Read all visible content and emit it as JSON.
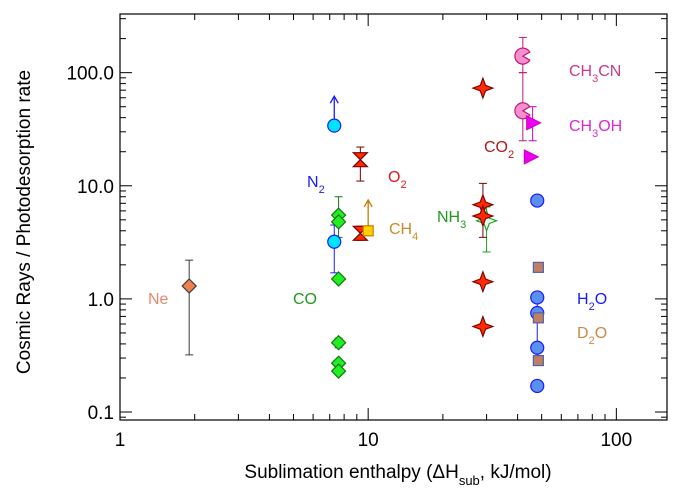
{
  "chart_data": {
    "type": "scatter",
    "xscale": "log",
    "yscale": "log",
    "xlim": [
      1,
      160
    ],
    "ylim": [
      0.085,
      330
    ],
    "xlabel": "Sublimation enthalpy (ΔH_sub, kJ/mol)",
    "ylabel": "Cosmic Rays / Photodesorption rate",
    "xticks": [
      {
        "value": 1,
        "label": "1"
      },
      {
        "value": 10,
        "label": "10"
      },
      {
        "value": 100,
        "label": "100"
      }
    ],
    "yticks": [
      {
        "value": 0.1,
        "label": "0.1"
      },
      {
        "value": 1,
        "label": "1.0"
      },
      {
        "value": 10,
        "label": "10.0"
      },
      {
        "value": 100,
        "label": "100.0"
      }
    ],
    "series": [
      {
        "name": "Ne",
        "color": "#f08050",
        "edge": "#3a3a3a",
        "marker": "diamond",
        "points": [
          {
            "x": 1.9,
            "y": 1.3,
            "ylo": 0.32,
            "yhi": 2.2
          }
        ]
      },
      {
        "name": "N2",
        "color": "#00e5ff",
        "edge": "#1a1aff",
        "marker": "circle",
        "points": [
          {
            "x": 7.3,
            "y": 34,
            "arrow": "up",
            "arrow_to": 62
          },
          {
            "x": 7.3,
            "y": 3.2,
            "ylo": 1.7,
            "yhi": 4.5
          }
        ]
      },
      {
        "name": "CO",
        "color": "#22ee22",
        "edge": "#127a12",
        "marker": "diamond",
        "points": [
          {
            "x": 7.6,
            "y": 5.5,
            "ylo": 3.5,
            "yhi": 8.0
          },
          {
            "x": 7.6,
            "y": 4.8
          },
          {
            "x": 7.6,
            "y": 1.5
          },
          {
            "x": 7.6,
            "y": 0.41,
            "ylo": 0.37,
            "yhi": 0.45
          },
          {
            "x": 7.6,
            "y": 0.27
          },
          {
            "x": 7.6,
            "y": 0.23
          }
        ]
      },
      {
        "name": "O2",
        "color": "#ff2a00",
        "edge": "#7a0000",
        "marker": "hourglass",
        "points": [
          {
            "x": 9.3,
            "y": 17,
            "ylo": 11,
            "yhi": 22
          },
          {
            "x": 9.3,
            "y": 3.8,
            "ylo": 3.3,
            "yhi": 4.4
          }
        ]
      },
      {
        "name": "CH4",
        "color": "#ffd200",
        "edge": "#c87800",
        "marker": "square",
        "points": [
          {
            "x": 10,
            "y": 4.0,
            "arrow": "up",
            "arrow_to": 7.5
          }
        ]
      },
      {
        "name": "NH3",
        "color": "#e0fff0",
        "edge": "#1aa01a",
        "marker": "star",
        "points": [
          {
            "x": 30,
            "y": 4.9,
            "ylo": 2.6,
            "yhi": 6.5
          }
        ]
      },
      {
        "name": "CO2",
        "color": "#ff2a00",
        "edge": "#7a0000",
        "marker": "star",
        "points": [
          {
            "x": 29,
            "y": 73
          },
          {
            "x": 29,
            "y": 6.8,
            "ylo": 3.5,
            "yhi": 10.5
          },
          {
            "x": 29,
            "y": 5.4
          },
          {
            "x": 29,
            "y": 1.42
          },
          {
            "x": 29,
            "y": 0.57
          }
        ]
      },
      {
        "name": "CH3CN",
        "color": "#f58fd0",
        "edge": "#c01878",
        "marker": "pacman",
        "points": [
          {
            "x": 42,
            "y": 140,
            "ylo": 100,
            "yhi": 205
          },
          {
            "x": 42,
            "y": 46,
            "ylo": 25,
            "yhi": 100
          }
        ]
      },
      {
        "name": "CH3OH",
        "color": "#ee00ee",
        "edge": "#c800c8",
        "marker": "triangle",
        "points": [
          {
            "x": 46,
            "y": 36,
            "ylo": 25,
            "yhi": 50
          },
          {
            "x": 45,
            "y": 18
          }
        ]
      },
      {
        "name": "H2O",
        "color": "#5a90ee",
        "edge": "#1a1aff",
        "marker": "circle",
        "points": [
          {
            "x": 48,
            "y": 7.4
          },
          {
            "x": 48,
            "y": 1.03
          },
          {
            "x": 48,
            "y": 0.75
          },
          {
            "x": 48,
            "y": 0.37,
            "ylo": 0.27,
            "yhi": 0.4
          },
          {
            "x": 48,
            "y": 0.17
          }
        ],
        "vline": {
          "x": 48,
          "y1": 0.3,
          "y2": 1.0
        }
      },
      {
        "name": "D2O",
        "color": "#c08060",
        "edge": "#5060b0",
        "marker": "square",
        "points": [
          {
            "x": 48.5,
            "y": 1.9
          },
          {
            "x": 48.5,
            "y": 0.68
          },
          {
            "x": 48.5,
            "y": 0.285
          }
        ]
      }
    ]
  },
  "labels": {
    "ne": "Ne",
    "n2_main": "N",
    "n2_sub": "2",
    "co": "CO",
    "o2_main": "O",
    "o2_sub": "2",
    "ch4_main": "CH",
    "ch4_sub": "4",
    "nh3_main": "NH",
    "nh3_sub": "3",
    "co2_main": "CO",
    "co2_sub": "2",
    "ch3cn_a": "CH",
    "ch3cn_sub": "3",
    "ch3cn_b": "CN",
    "ch3oh_a": "CH",
    "ch3oh_sub": "3",
    "ch3oh_b": "OH",
    "h2o_a": "H",
    "h2o_sub": "2",
    "h2o_b": "O",
    "d2o_a": "D",
    "d2o_sub": "2",
    "d2o_b": "O",
    "xlabel_a": "Sublimation enthalpy (ΔH",
    "xlabel_sub": "sub",
    "xlabel_b": ", kJ/mol)",
    "ylabel": "Cosmic Rays / Photodesorption rate"
  },
  "colors": {
    "ne": "#e8886a",
    "n2": "#1a1aff",
    "co": "#1f9a1f",
    "o2": "#e01a1a",
    "ch4": "#c88a2a",
    "nh3": "#1f9a1f",
    "co2": "#b01a1a",
    "ch3cn": "#c83a8a",
    "ch3oh": "#d82ad8",
    "h2o": "#1a1aff",
    "d2o": "#c88a4a"
  }
}
